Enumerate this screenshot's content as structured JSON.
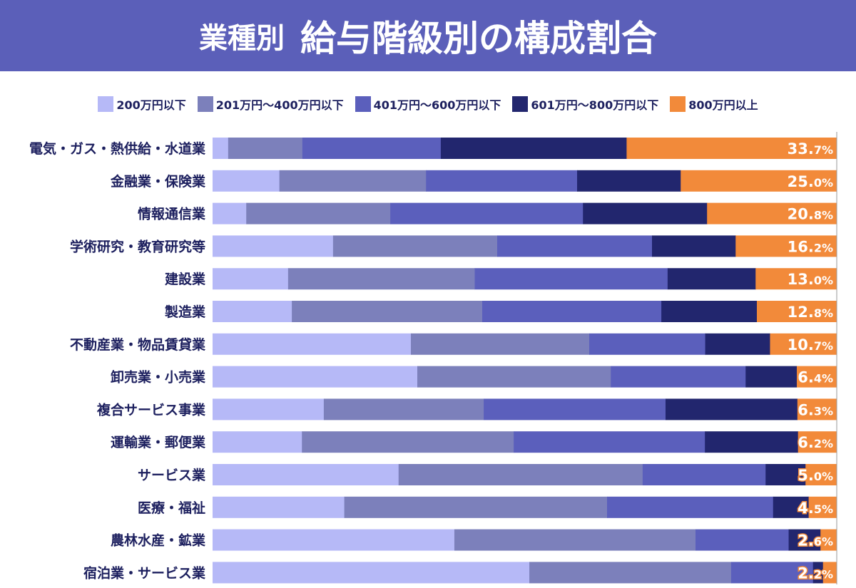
{
  "header": {
    "title_prefix": "業種別",
    "title_main": "給与階級別の構成割合"
  },
  "colors": {
    "header": "#5b5fb9",
    "label": "#1c1f5e"
  },
  "chart_data": {
    "type": "bar",
    "orientation": "horizontal",
    "stacked": true,
    "normalized": true,
    "legend_placement": "top",
    "unit": "%",
    "categories": [
      "電気・ガス・熱供給・水道業",
      "金融業・保険業",
      "情報通信業",
      "学術研究・教育研究等",
      "建設業",
      "製造業",
      "不動産業・物品賃貸業",
      "卸売業・小売業",
      "複合サービス事業",
      "運輸業・郵便業",
      "サービス業",
      "医療・福祉",
      "農林水産・鉱業",
      "宿泊業・サービス業"
    ],
    "series": [
      {
        "name": "200万円以下",
        "color": "#b6b9f7",
        "values": [
          2.5,
          10.7,
          5.4,
          19.3,
          12.1,
          12.7,
          31.8,
          32.8,
          17.8,
          14.3,
          29.8,
          21.1,
          38.7,
          50.7
        ]
      },
      {
        "name": "201万円～400万円以下",
        "color": "#7c80bb",
        "values": [
          11.9,
          23.5,
          23.1,
          26.3,
          29.9,
          30.5,
          28.6,
          31.0,
          25.6,
          33.9,
          39.1,
          42.1,
          38.6,
          32.3
        ]
      },
      {
        "name": "401万円～600万円以下",
        "color": "#5b5fbc",
        "values": [
          22.2,
          24.2,
          30.9,
          24.8,
          30.9,
          28.7,
          18.6,
          21.6,
          29.1,
          30.6,
          19.7,
          26.6,
          14.9,
          13.1
        ]
      },
      {
        "name": "601万円～800万円以下",
        "color": "#22266e",
        "values": [
          29.8,
          16.6,
          19.9,
          13.4,
          14.1,
          15.3,
          10.4,
          8.2,
          21.1,
          14.9,
          6.4,
          5.7,
          5.1,
          1.6
        ]
      },
      {
        "name": "800万円以上",
        "color": "#f28a3a",
        "values": [
          33.7,
          25.0,
          20.8,
          16.2,
          13.0,
          12.8,
          10.7,
          6.4,
          6.3,
          6.2,
          5.0,
          4.5,
          2.6,
          2.2
        ]
      }
    ],
    "data_labels": [
      "33.7%",
      "25.0%",
      "20.8%",
      "16.2%",
      "13.0%",
      "12.8%",
      "10.7%",
      "6.4%",
      "6.3%",
      "6.2%",
      "5.0%",
      "4.5%",
      "2.6%",
      "2.2%"
    ]
  }
}
